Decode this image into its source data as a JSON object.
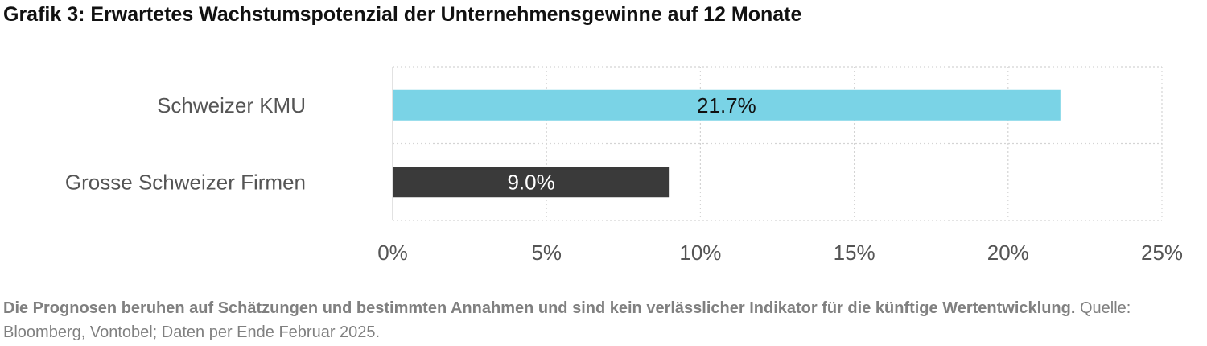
{
  "title": "Grafik 3: Erwartetes Wachstumspotenzial der Unternehmensgewinne auf 12 Monate",
  "footnote": {
    "bold": "Die Prognosen beruhen auf Schätzungen und bestimmten Annahmen und sind kein verlässlicher Indikator für die künftige Wertentwicklung.",
    "normal": " Quelle: Bloomberg, Vontobel; Daten per Ende Februar 2025."
  },
  "chart_data": {
    "type": "bar",
    "orientation": "horizontal",
    "categories": [
      "Schweizer KMU",
      "Grosse Schweizer Firmen"
    ],
    "values": [
      21.7,
      9.0
    ],
    "data_labels": [
      "21.7%",
      "9.0%"
    ],
    "colors": [
      "#7ad3e6",
      "#3a3a3a"
    ],
    "label_colors": [
      "#111111",
      "#ffffff"
    ],
    "xlim": [
      0,
      25
    ],
    "x_ticks": [
      0,
      5,
      10,
      15,
      20,
      25
    ],
    "x_tick_labels": [
      "0%",
      "5%",
      "10%",
      "15%",
      "20%",
      "25%"
    ],
    "grid": true
  }
}
